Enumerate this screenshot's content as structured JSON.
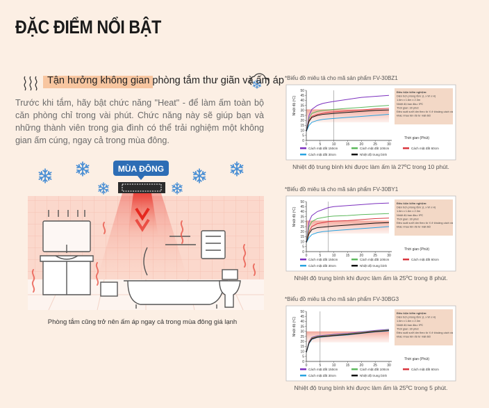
{
  "header": {
    "title": "ĐẶC ĐIỂM NỔI BẬT"
  },
  "feature": {
    "heading": "Tận hưởng không gian phòng tắm thư giãn và ấm áp",
    "body": "Trước khi tắm, hãy bật chức năng \"Heat\" - để làm ấm toàn bộ căn phòng chỉ trong vài phút. Chức năng này sẽ giúp bạn và những thành viên trong gia đình có thể trải nghiệm một không gian ấm cúng, ngay cả trong mùa đông.",
    "badge": "MÙA ĐÔNG",
    "caption": "Phòng tắm cũng trở nên ấm áp ngay cả trong mùa đông giá lạnh"
  },
  "chart_data": [
    {
      "type": "line",
      "note": "*Biểu đồ miêu tả cho mã sản phẩm FV-30BZ1",
      "ylabel": "Nhiệt độ (ºC)",
      "xlabel": "Thời gian (Phút)",
      "x": [
        0,
        1,
        2,
        4,
        6,
        8,
        10,
        15,
        20,
        25,
        30
      ],
      "xlim": [
        0,
        30
      ],
      "xticks": [
        0,
        5,
        10,
        15,
        20,
        25,
        30
      ],
      "ylim": [
        0,
        50
      ],
      "yticks": [
        0,
        5,
        10,
        15,
        20,
        25,
        30,
        35,
        40,
        45,
        50
      ],
      "marker_x": 10,
      "shaded_range": [
        18,
        31
      ],
      "info": [
        "Điều kiện kiểm nghiệm:",
        "Diện tích phòng tắm: (L x W x H)",
        "1.6m x 1.6m x 2.3m",
        "Nhiệt độ ban đầu: 9ºC",
        "Thời gian: 30 phút",
        "Điều suất sưởi ấm theo từ X ở khoảng cách và",
        "khác nhau tên độ từ mặt đất"
      ],
      "series": [
        {
          "name": "Cách mặt đất 150cm",
          "color": "#7b2fbe",
          "values": [
            9,
            25,
            31,
            35,
            37,
            38,
            39,
            41,
            43,
            44,
            45
          ]
        },
        {
          "name": "Cách mặt đất 100cm",
          "color": "#5cb85c",
          "values": [
            9,
            22,
            27,
            29,
            30,
            30.5,
            31,
            32,
            33,
            34,
            35
          ]
        },
        {
          "name": "Cách mặt đất 60cm",
          "color": "#d9363e",
          "values": [
            9,
            20,
            24,
            26,
            27,
            28,
            28.5,
            29.5,
            30.5,
            31.5,
            32
          ]
        },
        {
          "name": "Cách mặt đất 30cm",
          "color": "#29a3e0",
          "values": [
            9,
            15,
            18,
            20,
            21,
            21.5,
            22,
            23,
            24,
            25,
            26
          ]
        },
        {
          "name": "Nhiệt độ trung bình",
          "color": "#111111",
          "values": [
            9,
            19,
            23,
            25,
            26,
            26.5,
            27,
            28,
            29,
            30,
            30.5
          ]
        }
      ],
      "caption": "Nhiệt độ trung bình khi được làm ấm là 27ºC trong 10 phút."
    },
    {
      "type": "line",
      "note": "*Biểu đồ miêu tả cho mã sản phẩm FV-30BY1",
      "ylabel": "Nhiệt độ (ºC)",
      "xlabel": "Thời gian (Phút)",
      "x": [
        0,
        1,
        2,
        4,
        6,
        8,
        10,
        15,
        20,
        25,
        30
      ],
      "xlim": [
        0,
        30
      ],
      "xticks": [
        0,
        5,
        10,
        15,
        20,
        25,
        30
      ],
      "ylim": [
        0,
        50
      ],
      "yticks": [
        0,
        5,
        10,
        15,
        20,
        25,
        30,
        35,
        40,
        45,
        50
      ],
      "marker_x": 8,
      "shaded_range": [
        18,
        31
      ],
      "info": [
        "Điều kiện kiểm nghiệm:",
        "Diện tích phòng tắm: (L x W x H)",
        "1.6m x 1.6m x 2.3m",
        "Nhiệt độ ban đầu: 9ºC",
        "Thời gian: 30 phút",
        "Điều suất sưởi ấm theo từ X ở khoảng cách và",
        "khác nhau tên độ từ mặt đất"
      ],
      "series": [
        {
          "name": "Cách mặt đất 150cm",
          "color": "#7b2fbe",
          "values": [
            9,
            30,
            36,
            40,
            42,
            44,
            45,
            46,
            47,
            48,
            48.5
          ]
        },
        {
          "name": "Cách mặt đất 100cm",
          "color": "#5cb85c",
          "values": [
            9,
            25,
            30,
            33,
            34,
            35,
            35.5,
            36,
            37,
            37.5,
            38
          ]
        },
        {
          "name": "Cách mặt đất 60cm",
          "color": "#d9363e",
          "values": [
            9,
            20,
            25,
            28,
            29,
            30,
            30.5,
            31,
            32,
            33,
            33.5
          ]
        },
        {
          "name": "Cách mặt đất 30cm",
          "color": "#29a3e0",
          "values": [
            9,
            14,
            17,
            19,
            20,
            20.5,
            21,
            22,
            23,
            24,
            25
          ]
        },
        {
          "name": "Nhiệt độ trung bình",
          "color": "#111111",
          "values": [
            9,
            18,
            22,
            24,
            24.5,
            25,
            25.5,
            26.5,
            27.5,
            28.5,
            29
          ]
        }
      ],
      "caption": "Nhiệt độ trung bình khi được làm ấm là 25ºC trong 8 phút."
    },
    {
      "type": "line",
      "note": "*Biểu đồ miêu tả cho mã sản phẩm FV-30BG3",
      "ylabel": "Nhiệt độ (ºC)",
      "xlabel": "Thời gian (Phút)",
      "x": [
        0,
        1,
        2,
        4,
        6,
        8,
        10,
        15,
        20,
        25,
        30
      ],
      "xlim": [
        0,
        30
      ],
      "xticks": [
        0,
        5,
        10,
        15,
        20,
        25,
        30
      ],
      "ylim": [
        0,
        50
      ],
      "yticks": [
        0,
        5,
        10,
        15,
        20,
        25,
        30,
        35,
        40,
        45,
        50
      ],
      "marker_x": 5,
      "shaded_range": [
        19,
        30
      ],
      "info": [
        "Điều kiện kiểm nghiệm:",
        "Diện tích phòng tắm: (L x W x H)",
        "1.6m x 1.6m x 2.3m",
        "Nhiệt độ ban đầu: 9ºC",
        "Thời gian: 30 phút",
        "Điều suất sưởi ấm theo từ X ở khoảng cách và",
        "khác nhau tên độ từ mặt đất"
      ],
      "series": [
        {
          "name": "Cách mặt đất 150cm",
          "color": "#7b2fbe",
          "values": [
            9,
            20,
            24,
            25.5,
            26,
            26.5,
            27,
            28,
            29.5,
            31,
            32
          ]
        },
        {
          "name": "Cách mặt đất 100cm",
          "color": "#5cb85c",
          "values": [
            9,
            19.5,
            23.5,
            25,
            25.5,
            26,
            26.5,
            27.5,
            29,
            30.5,
            31.5
          ]
        },
        {
          "name": "Cách mặt đất 60cm",
          "color": "#d9363e",
          "values": [
            9,
            19,
            23,
            24.5,
            25,
            25.5,
            26,
            27,
            28.5,
            30,
            31
          ]
        },
        {
          "name": "Cách mặt đất 30cm",
          "color": "#29a3e0",
          "values": [
            9,
            18,
            22,
            24,
            24.5,
            25,
            25.5,
            26.5,
            28,
            29.5,
            30.5
          ]
        },
        {
          "name": "Nhiệt độ trung bình",
          "color": "#111111",
          "values": [
            9,
            18.5,
            22.5,
            24.2,
            24.8,
            25.2,
            25.8,
            26.8,
            28.2,
            29.8,
            30.8
          ]
        }
      ],
      "caption": "Nhiệt độ trung bình khi được làm ấm là 25ºC trong 5 phút."
    }
  ]
}
